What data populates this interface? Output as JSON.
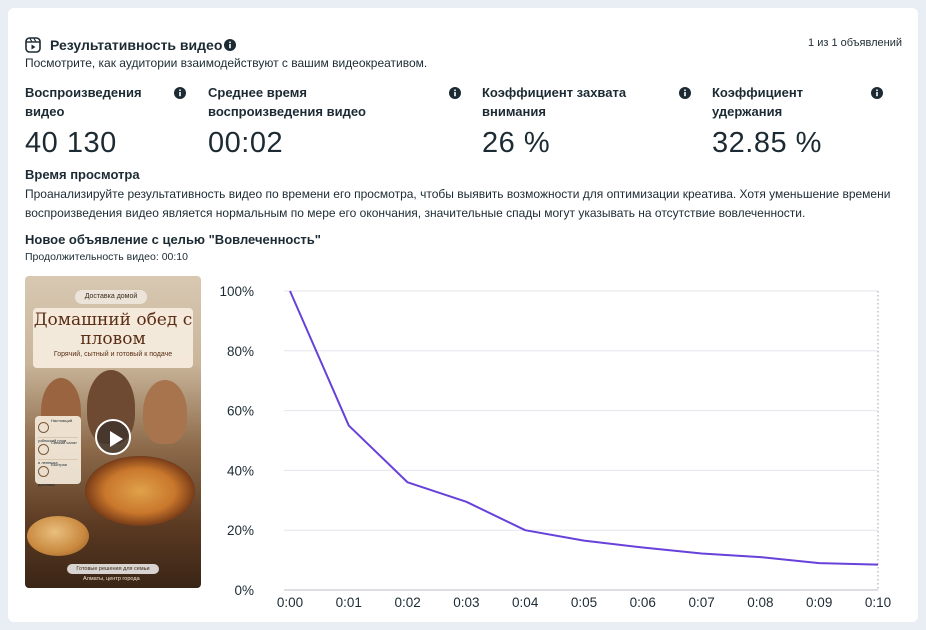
{
  "header": {
    "title": "Результативность видео",
    "pager": "1 из 1 объявлений",
    "subtitle": "Посмотрите, как аудитории взаимодействуют с вашим видеокреативом."
  },
  "metrics": [
    {
      "label": "Воспроизведения видео",
      "value": "40 130"
    },
    {
      "label": "Среднее время воспроизведения видео",
      "value": "00:02"
    },
    {
      "label": "Коэффициент захвата внимания",
      "value": "26 %"
    },
    {
      "label": "Коэффициент удержания",
      "value": "32.85 %"
    }
  ],
  "watch_time": {
    "title": "Время просмотра",
    "description": "Проанализируйте результативность видео по времени его просмотра, чтобы выявить возможности для оптимизации креатива. Хотя уменьшение времени воспроизведения видео является нормальным по мере его окончания, значительные спады могут указывать на отсутствие вовлеченности."
  },
  "ad": {
    "title": "Новое объявление с целью \"Вовлеченность\"",
    "duration": "Продолжительность видео: 00:10"
  },
  "thumbnail": {
    "badge": "Доставка домой",
    "headline": "Домашний обед с пловом",
    "tagline": "Горячий, сытный и готовый к подаче",
    "features": [
      "Настоящий узбекский плов",
      "Свежий салат и лепешка",
      "Быстрая доставка"
    ],
    "footer_1": "Готовые решения для семьи",
    "footer_2": "Алматы, центр города",
    "play_icon": "play-icon"
  },
  "chart_data": {
    "type": "line",
    "x": [
      "0:00",
      "0:01",
      "0:02",
      "0:03",
      "0:04",
      "0:05",
      "0:06",
      "0:07",
      "0:08",
      "0:09",
      "0:10"
    ],
    "series": [
      {
        "values": [
          100,
          55,
          36,
          29.5,
          20,
          16.5,
          14.2,
          12.2,
          11,
          9,
          8.5
        ],
        "color": "#6741d9"
      }
    ],
    "yticks": [
      "0%",
      "20%",
      "40%",
      "60%",
      "80%",
      "100%"
    ],
    "ylim": [
      0,
      100
    ],
    "grid": true
  },
  "colors": {
    "line": "#6741d9",
    "text": "#1c2b33",
    "background": "#e9edf4"
  }
}
